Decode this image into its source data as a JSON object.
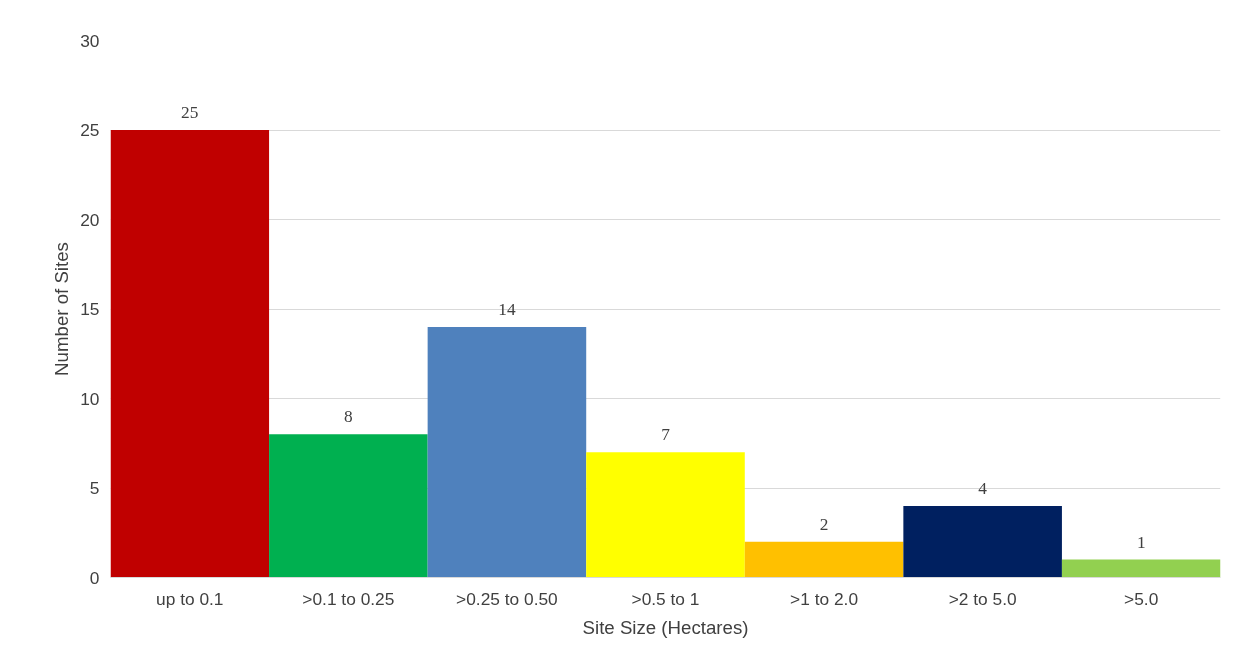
{
  "chart_data": {
    "type": "bar",
    "xlabel": "Site Size (Hectares)",
    "ylabel": "Number of Sites",
    "categories": [
      "up to 0.1",
      ">0.1 to 0.25",
      ">0.25 to 0.50",
      ">0.5 to 1",
      ">1 to 2.0",
      ">2 to 5.0",
      ">5.0"
    ],
    "values": [
      25,
      8,
      14,
      7,
      2,
      4,
      1
    ],
    "colors": [
      "#c00000",
      "#00b050",
      "#4f81bd",
      "#ffff00",
      "#ffc000",
      "#002060",
      "#92d050"
    ],
    "ylim": [
      0,
      30
    ],
    "yticks": [
      0,
      5,
      10,
      15,
      20,
      25,
      30
    ],
    "grid": "y",
    "data_labels": true
  }
}
